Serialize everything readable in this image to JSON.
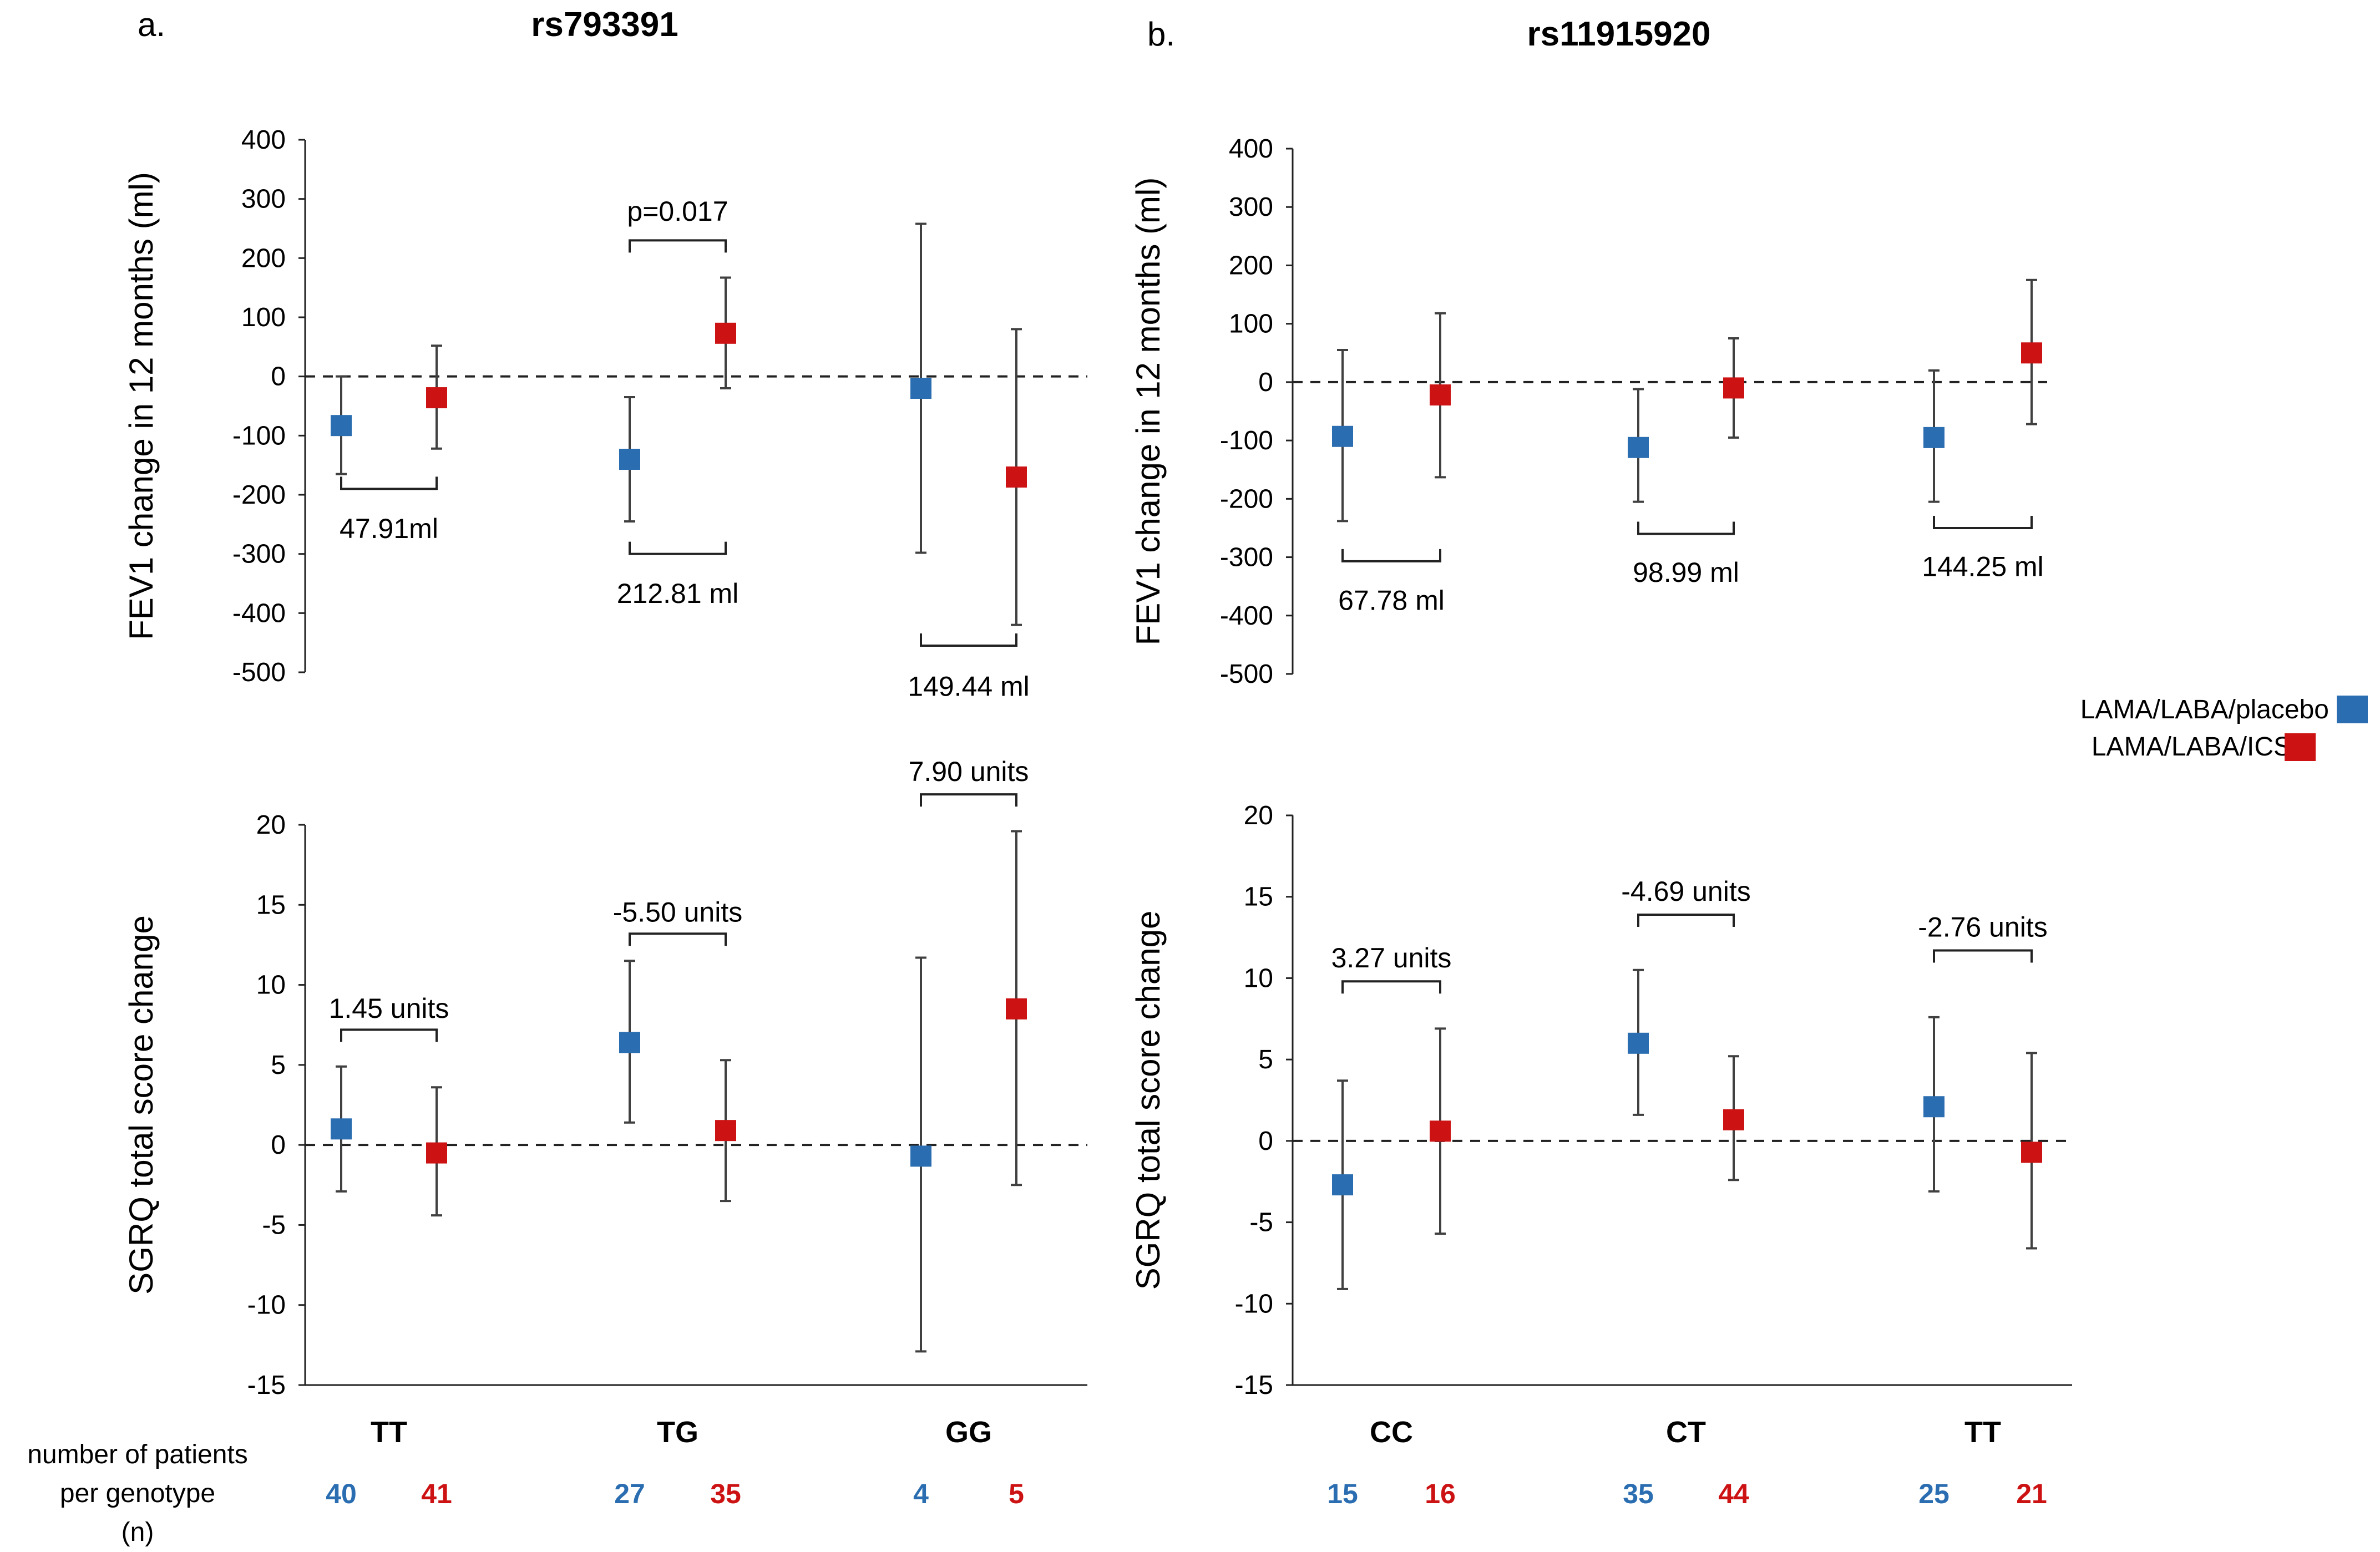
{
  "figure": {
    "panel_labels": [
      "a.",
      "b."
    ],
    "panel_titles": [
      "rs793391",
      "rs11915920"
    ],
    "legend": {
      "placement": "right-middle",
      "entries": [
        {
          "label": "LAMA/LABA/placebo",
          "color": "#2a6db0"
        },
        {
          "label": "LAMA/LABA/ICS",
          "color": "#cc1212"
        }
      ]
    },
    "n_label_lines": [
      "number of patients",
      "per genotype",
      "(n)"
    ],
    "colors": {
      "placebo": "#2a6db0",
      "ics": "#cc1212",
      "errorbar": "#404040"
    }
  },
  "chart_data": [
    {
      "type": "scatter",
      "panel": "a",
      "title": "rs793391",
      "ylabel": "FEV1 change in 12 months (ml)",
      "ylim": [
        -500,
        400
      ],
      "yticks": [
        400,
        300,
        200,
        100,
        0,
        -100,
        -200,
        -300,
        -400,
        -500
      ],
      "ytick_labels": [
        "400",
        "300",
        "200",
        "100",
        "0",
        "-100",
        "-200",
        "-300",
        "-400",
        "-500"
      ],
      "categories": [
        "TT",
        "TG",
        "GG"
      ],
      "series": [
        {
          "name": "LAMA/LABA/placebo",
          "values": [
            -83,
            -140,
            -20
          ],
          "err_low": [
            -165,
            -245,
            -298
          ],
          "err_high": [
            0,
            -35,
            258
          ]
        },
        {
          "name": "LAMA/LABA/ICS",
          "values": [
            -36,
            73,
            -170
          ],
          "err_low": [
            -122,
            -20,
            -420
          ],
          "err_high": [
            52,
            167,
            80
          ]
        }
      ],
      "annotations": [
        {
          "text": "47.91ml",
          "category": 0,
          "bracket_y": -190,
          "text_y": -258,
          "side": "below"
        },
        {
          "text": "212.81 ml",
          "category": 1,
          "bracket_y": -300,
          "text_y": -368,
          "side": "below"
        },
        {
          "text": "p=0.017",
          "category": 1,
          "bracket_y": 230,
          "text_y": 278,
          "side": "above"
        },
        {
          "text": "149.44 ml",
          "category": 2,
          "bracket_y": -455,
          "text_y": -525,
          "side": "below"
        }
      ]
    },
    {
      "type": "scatter",
      "panel": "a",
      "title": "",
      "ylabel": "SGRQ total score change",
      "ylim": [
        -15,
        20
      ],
      "yticks": [
        20,
        15,
        10,
        5,
        0,
        -5,
        -10,
        -15
      ],
      "ytick_labels": [
        "20",
        "15",
        "10",
        "5",
        "0",
        "-5",
        "-10",
        "-15"
      ],
      "categories": [
        "TT",
        "TG",
        "GG"
      ],
      "series": [
        {
          "name": "LAMA/LABA/placebo",
          "values": [
            1.0,
            6.4,
            -0.7
          ],
          "err_low": [
            -2.9,
            1.4,
            -12.9
          ],
          "err_high": [
            4.9,
            11.5,
            11.7
          ]
        },
        {
          "name": "LAMA/LABA/ICS",
          "values": [
            -0.5,
            0.9,
            8.5
          ],
          "err_low": [
            -4.4,
            -3.5,
            -2.5
          ],
          "err_high": [
            3.6,
            5.3,
            19.6
          ]
        }
      ],
      "annotations": [
        {
          "text": "1.45 units",
          "category": 0,
          "bracket_y": 7.2,
          "text_y": 8.5,
          "side": "above"
        },
        {
          "text": "-5.50 units",
          "category": 1,
          "bracket_y": 13.2,
          "text_y": 14.5,
          "side": "above"
        },
        {
          "text": "7.90 units",
          "category": 2,
          "bracket_y": 21.9,
          "text_y": 23.3,
          "side": "above"
        }
      ]
    },
    {
      "type": "scatter",
      "panel": "b",
      "title": "rs11915920",
      "ylabel": "FEV1 change in 12 months (ml)",
      "ylim": [
        -500,
        400
      ],
      "yticks": [
        400,
        300,
        200,
        100,
        0,
        -100,
        -200,
        -300,
        -400,
        -500
      ],
      "ytick_labels": [
        "400",
        "300",
        "200",
        "100",
        "0",
        "-100",
        "-200",
        "-300",
        "-400",
        "-500"
      ],
      "categories": [
        "CC",
        "CT",
        "TT"
      ],
      "series": [
        {
          "name": "LAMA/LABA/placebo",
          "values": [
            -93,
            -112,
            -95
          ],
          "err_low": [
            -238,
            -205,
            -205
          ],
          "err_high": [
            55,
            -12,
            20
          ]
        },
        {
          "name": "LAMA/LABA/ICS",
          "values": [
            -22,
            -10,
            50
          ],
          "err_low": [
            -163,
            -95,
            -72
          ],
          "err_high": [
            118,
            75,
            175
          ]
        }
      ],
      "annotations": [
        {
          "text": "67.78 ml",
          "category": 0,
          "bracket_y": -307,
          "text_y": -375,
          "side": "below"
        },
        {
          "text": "98.99 ml",
          "category": 1,
          "bracket_y": -260,
          "text_y": -327,
          "side": "below"
        },
        {
          "text": "144.25 ml",
          "category": 2,
          "bracket_y": -250,
          "text_y": -317,
          "side": "below"
        }
      ]
    },
    {
      "type": "scatter",
      "panel": "b",
      "title": "",
      "ylabel": "SGRQ total score change",
      "ylim": [
        -15,
        20
      ],
      "yticks": [
        20,
        15,
        10,
        5,
        0,
        -5,
        -10,
        -15
      ],
      "ytick_labels": [
        "20",
        "15",
        "10",
        "5",
        "0",
        "-5",
        "-10",
        "-15"
      ],
      "categories": [
        "CC",
        "CT",
        "TT"
      ],
      "series": [
        {
          "name": "LAMA/LABA/placebo",
          "values": [
            -2.7,
            6.0,
            2.1
          ],
          "err_low": [
            -9.1,
            1.6,
            -3.1
          ],
          "err_high": [
            3.7,
            10.5,
            7.6
          ]
        },
        {
          "name": "LAMA/LABA/ICS",
          "values": [
            0.6,
            1.3,
            -0.7
          ],
          "err_low": [
            -5.7,
            -2.4,
            -6.6
          ],
          "err_high": [
            6.9,
            5.2,
            5.4
          ]
        }
      ],
      "annotations": [
        {
          "text": "3.27 units",
          "category": 0,
          "bracket_y": 9.8,
          "text_y": 11.2,
          "side": "above"
        },
        {
          "text": "-4.69 units",
          "category": 1,
          "bracket_y": 13.9,
          "text_y": 15.3,
          "side": "above"
        },
        {
          "text": "-2.76 units",
          "category": 2,
          "bracket_y": 11.7,
          "text_y": 13.1,
          "side": "above"
        }
      ]
    }
  ],
  "counts": [
    {
      "genotypes": [
        "TT",
        "TG",
        "GG"
      ],
      "placebo": [
        "40",
        "27",
        "4"
      ],
      "ics": [
        "41",
        "35",
        "5"
      ]
    },
    {
      "genotypes": [
        "CC",
        "CT",
        "TT"
      ],
      "placebo": [
        "15",
        "35",
        "25"
      ],
      "ics": [
        "16",
        "44",
        "21"
      ]
    }
  ]
}
